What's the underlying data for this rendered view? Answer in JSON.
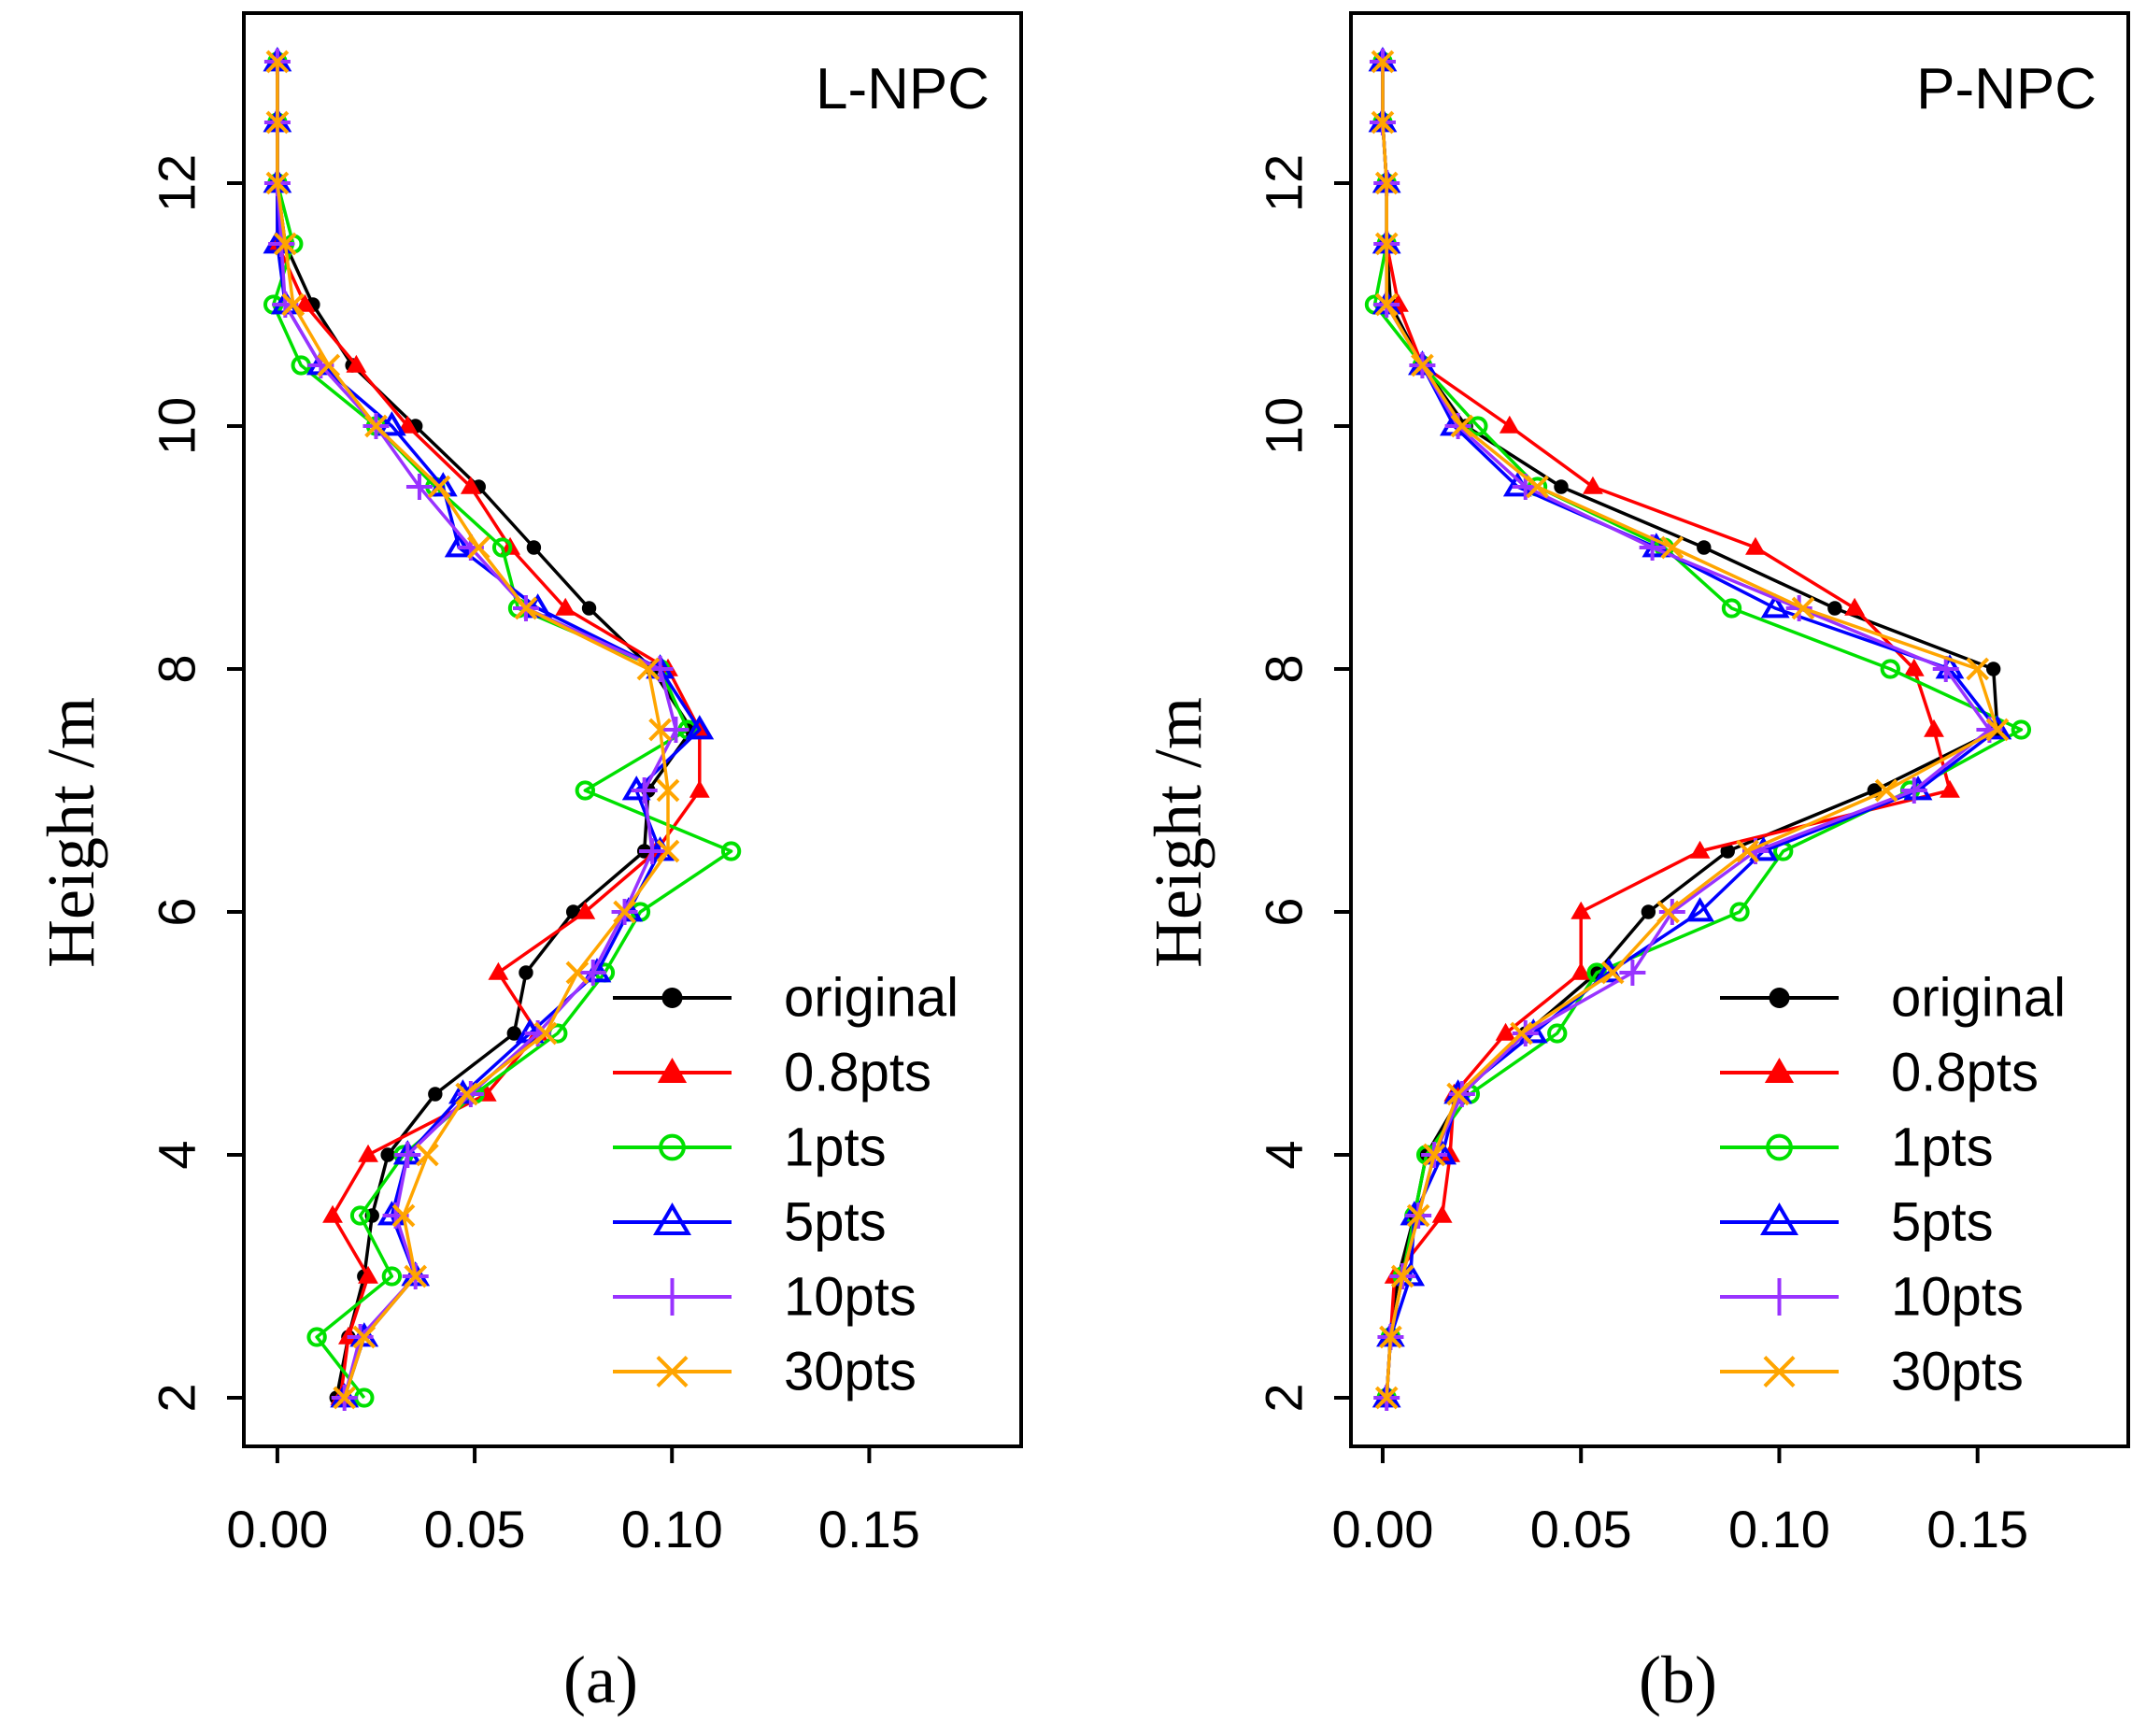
{
  "chart_data": [
    {
      "type": "line",
      "title": "L-NPC",
      "panel_label": "(a)",
      "xlabel": "",
      "ylabel": "Height /m",
      "xlim": [
        -0.0085,
        0.1885
      ],
      "ylim": [
        1.6,
        13.4
      ],
      "xticks": [
        0.0,
        0.05,
        0.1,
        0.15
      ],
      "xtick_labels": [
        "0.00",
        "0.05",
        "0.10",
        "0.15"
      ],
      "yticks": [
        2,
        4,
        6,
        8,
        10,
        12
      ],
      "ytick_labels": [
        "2",
        "4",
        "6",
        "8",
        "10",
        "12"
      ],
      "grid": false,
      "legend_position": "lower-right",
      "series": [
        {
          "name": "original",
          "color": "#000000",
          "marker": "dot",
          "x": [
            0.0,
            0.0,
            0.0,
            0.002,
            0.009,
            0.019,
            0.035,
            0.051,
            0.065,
            0.079,
            0.095,
            0.105,
            0.094,
            0.093,
            0.075,
            0.063,
            0.06,
            0.04,
            0.028,
            0.024,
            0.022,
            0.018,
            0.015
          ],
          "y": [
            13.0,
            12.5,
            12.0,
            11.5,
            11.0,
            10.5,
            10.0,
            9.5,
            9.0,
            8.5,
            8.0,
            7.5,
            7.0,
            6.5,
            6.0,
            5.5,
            5.0,
            4.5,
            4.0,
            3.5,
            3.0,
            2.5,
            2.0
          ]
        },
        {
          "name": "0.8pts",
          "color": "#ff0000",
          "marker": "filled-triangle",
          "x": [
            0.0,
            0.0,
            0.0,
            0.0,
            0.007,
            0.02,
            0.033,
            0.049,
            0.059,
            0.073,
            0.099,
            0.107,
            0.107,
            0.096,
            0.078,
            0.056,
            0.066,
            0.053,
            0.023,
            0.014,
            0.023,
            0.018,
            0.016
          ],
          "y": [
            13.0,
            12.5,
            12.0,
            11.5,
            11.0,
            10.5,
            10.0,
            9.5,
            9.0,
            8.5,
            8.0,
            7.5,
            7.0,
            6.5,
            6.0,
            5.5,
            5.0,
            4.5,
            4.0,
            3.5,
            3.0,
            2.5,
            2.0
          ]
        },
        {
          "name": "1pts",
          "color": "#00e000",
          "marker": "open-circle",
          "x": [
            0.0,
            0.0,
            0.0,
            0.004,
            -0.001,
            0.006,
            0.025,
            0.04,
            0.057,
            0.061,
            0.097,
            0.104,
            0.078,
            0.115,
            0.092,
            0.083,
            0.071,
            0.05,
            0.032,
            0.021,
            0.029,
            0.01,
            0.022
          ],
          "y": [
            13.0,
            12.5,
            12.0,
            11.5,
            11.0,
            10.5,
            10.0,
            9.5,
            9.0,
            8.5,
            8.0,
            7.5,
            7.0,
            6.5,
            6.0,
            5.5,
            5.0,
            4.5,
            4.0,
            3.5,
            3.0,
            2.5,
            2.0
          ]
        },
        {
          "name": "5pts",
          "color": "#0000ff",
          "marker": "open-triangle",
          "x": [
            0.0,
            0.0,
            0.0,
            0.0,
            0.002,
            0.011,
            0.029,
            0.042,
            0.046,
            0.066,
            0.097,
            0.107,
            0.091,
            0.097,
            0.089,
            0.081,
            0.064,
            0.047,
            0.033,
            0.029,
            0.035,
            0.022,
            0.017
          ],
          "y": [
            13.0,
            12.5,
            12.0,
            11.5,
            11.0,
            10.5,
            10.0,
            9.5,
            9.0,
            8.5,
            8.0,
            7.5,
            7.0,
            6.5,
            6.0,
            5.5,
            5.0,
            4.5,
            4.0,
            3.5,
            3.0,
            2.5,
            2.0
          ]
        },
        {
          "name": "10pts",
          "color": "#9933ff",
          "marker": "plus",
          "x": [
            0.0,
            0.0,
            0.0,
            0.001,
            0.002,
            0.011,
            0.025,
            0.036,
            0.049,
            0.063,
            0.097,
            0.101,
            0.093,
            0.095,
            0.088,
            0.08,
            0.066,
            0.049,
            0.033,
            0.03,
            0.035,
            0.021,
            0.017
          ],
          "y": [
            13.0,
            12.5,
            12.0,
            11.5,
            11.0,
            10.5,
            10.0,
            9.5,
            9.0,
            8.5,
            8.0,
            7.5,
            7.0,
            6.5,
            6.0,
            5.5,
            5.0,
            4.5,
            4.0,
            3.5,
            3.0,
            2.5,
            2.0
          ]
        },
        {
          "name": "30pts",
          "color": "#ffa500",
          "marker": "cross",
          "x": [
            0.0,
            0.0,
            0.0,
            0.002,
            0.004,
            0.013,
            0.025,
            0.041,
            0.051,
            0.063,
            0.094,
            0.097,
            0.099,
            0.099,
            0.088,
            0.076,
            0.068,
            0.048,
            0.038,
            0.032,
            0.035,
            0.022,
            0.017
          ],
          "y": [
            13.0,
            12.5,
            12.0,
            11.5,
            11.0,
            10.5,
            10.0,
            9.5,
            9.0,
            8.5,
            8.0,
            7.5,
            7.0,
            6.5,
            6.0,
            5.5,
            5.0,
            4.5,
            4.0,
            3.5,
            3.0,
            2.5,
            2.0
          ]
        }
      ]
    },
    {
      "type": "line",
      "title": "P-NPC",
      "panel_label": "(b)",
      "xlabel": "",
      "ylabel": "Height /m",
      "xlim": [
        -0.008,
        0.188
      ],
      "ylim": [
        1.6,
        13.4
      ],
      "xticks": [
        0.0,
        0.05,
        0.1,
        0.15
      ],
      "xtick_labels": [
        "0.00",
        "0.05",
        "0.10",
        "0.15"
      ],
      "yticks": [
        2,
        4,
        6,
        8,
        10,
        12
      ],
      "ytick_labels": [
        "2",
        "4",
        "6",
        "8",
        "10",
        "12"
      ],
      "grid": false,
      "legend_position": "lower-right",
      "series": [
        {
          "name": "original",
          "color": "#000000",
          "marker": "dot",
          "x": [
            0.0,
            0.0,
            0.001,
            0.001,
            0.002,
            0.01,
            0.021,
            0.045,
            0.081,
            0.114,
            0.154,
            0.155,
            0.124,
            0.087,
            0.067,
            0.054,
            0.036,
            0.02,
            0.011,
            0.008,
            0.004,
            0.002,
            0.001
          ],
          "y": [
            13.0,
            12.5,
            12.0,
            11.5,
            11.0,
            10.5,
            10.0,
            9.5,
            9.0,
            8.5,
            8.0,
            7.5,
            7.0,
            6.5,
            6.0,
            5.5,
            5.0,
            4.5,
            4.0,
            3.5,
            3.0,
            2.5,
            2.0
          ]
        },
        {
          "name": "0.8pts",
          "color": "#ff0000",
          "marker": "filled-triangle",
          "x": [
            0.0,
            0.0,
            0.001,
            0.001,
            0.004,
            0.01,
            0.032,
            0.053,
            0.094,
            0.119,
            0.134,
            0.139,
            0.143,
            0.08,
            0.05,
            0.05,
            0.031,
            0.018,
            0.017,
            0.015,
            0.003,
            0.002,
            0.001
          ],
          "y": [
            13.0,
            12.5,
            12.0,
            11.5,
            11.0,
            10.5,
            10.0,
            9.5,
            9.0,
            8.5,
            8.0,
            7.5,
            7.0,
            6.5,
            6.0,
            5.5,
            5.0,
            4.5,
            4.0,
            3.5,
            3.0,
            2.5,
            2.0
          ]
        },
        {
          "name": "1pts",
          "color": "#00e000",
          "marker": "open-circle",
          "x": [
            0.0,
            0.0,
            0.001,
            0.001,
            -0.002,
            0.01,
            0.024,
            0.039,
            0.071,
            0.088,
            0.128,
            0.161,
            0.133,
            0.101,
            0.09,
            0.054,
            0.044,
            0.022,
            0.011,
            0.008,
            0.005,
            0.002,
            0.001
          ],
          "y": [
            13.0,
            12.5,
            12.0,
            11.5,
            11.0,
            10.5,
            10.0,
            9.5,
            9.0,
            8.5,
            8.0,
            7.5,
            7.0,
            6.5,
            6.0,
            5.5,
            5.0,
            4.5,
            4.0,
            3.5,
            3.0,
            2.5,
            2.0
          ]
        },
        {
          "name": "5pts",
          "color": "#0000ff",
          "marker": "open-triangle",
          "x": [
            0.0,
            0.0,
            0.001,
            0.001,
            0.001,
            0.01,
            0.018,
            0.034,
            0.069,
            0.099,
            0.143,
            0.155,
            0.135,
            0.096,
            0.08,
            0.057,
            0.038,
            0.019,
            0.015,
            0.008,
            0.007,
            0.002,
            0.001
          ],
          "y": [
            13.0,
            12.5,
            12.0,
            11.5,
            11.0,
            10.5,
            10.0,
            9.5,
            9.0,
            8.5,
            8.0,
            7.5,
            7.0,
            6.5,
            6.0,
            5.5,
            5.0,
            4.5,
            4.0,
            3.5,
            3.0,
            2.5,
            2.0
          ]
        },
        {
          "name": "10pts",
          "color": "#9933ff",
          "marker": "plus",
          "x": [
            0.0,
            0.0,
            0.001,
            0.001,
            0.001,
            0.01,
            0.019,
            0.036,
            0.068,
            0.105,
            0.142,
            0.153,
            0.134,
            0.094,
            0.073,
            0.063,
            0.036,
            0.02,
            0.013,
            0.009,
            0.005,
            0.002,
            0.001
          ],
          "y": [
            13.0,
            12.5,
            12.0,
            11.5,
            11.0,
            10.5,
            10.0,
            9.5,
            9.0,
            8.5,
            8.0,
            7.5,
            7.0,
            6.5,
            6.0,
            5.5,
            5.0,
            4.5,
            4.0,
            3.5,
            3.0,
            2.5,
            2.0
          ]
        },
        {
          "name": "30pts",
          "color": "#ffa500",
          "marker": "cross",
          "x": [
            0.0,
            0.0,
            0.001,
            0.001,
            0.001,
            0.01,
            0.02,
            0.039,
            0.073,
            0.106,
            0.15,
            0.155,
            0.127,
            0.092,
            0.072,
            0.058,
            0.035,
            0.019,
            0.013,
            0.009,
            0.005,
            0.002,
            0.001
          ],
          "y": [
            13.0,
            12.5,
            12.0,
            11.5,
            11.0,
            10.5,
            10.0,
            9.5,
            9.0,
            8.5,
            8.0,
            7.5,
            7.0,
            6.5,
            6.0,
            5.5,
            5.0,
            4.5,
            4.0,
            3.5,
            3.0,
            2.5,
            2.0
          ]
        }
      ]
    }
  ]
}
